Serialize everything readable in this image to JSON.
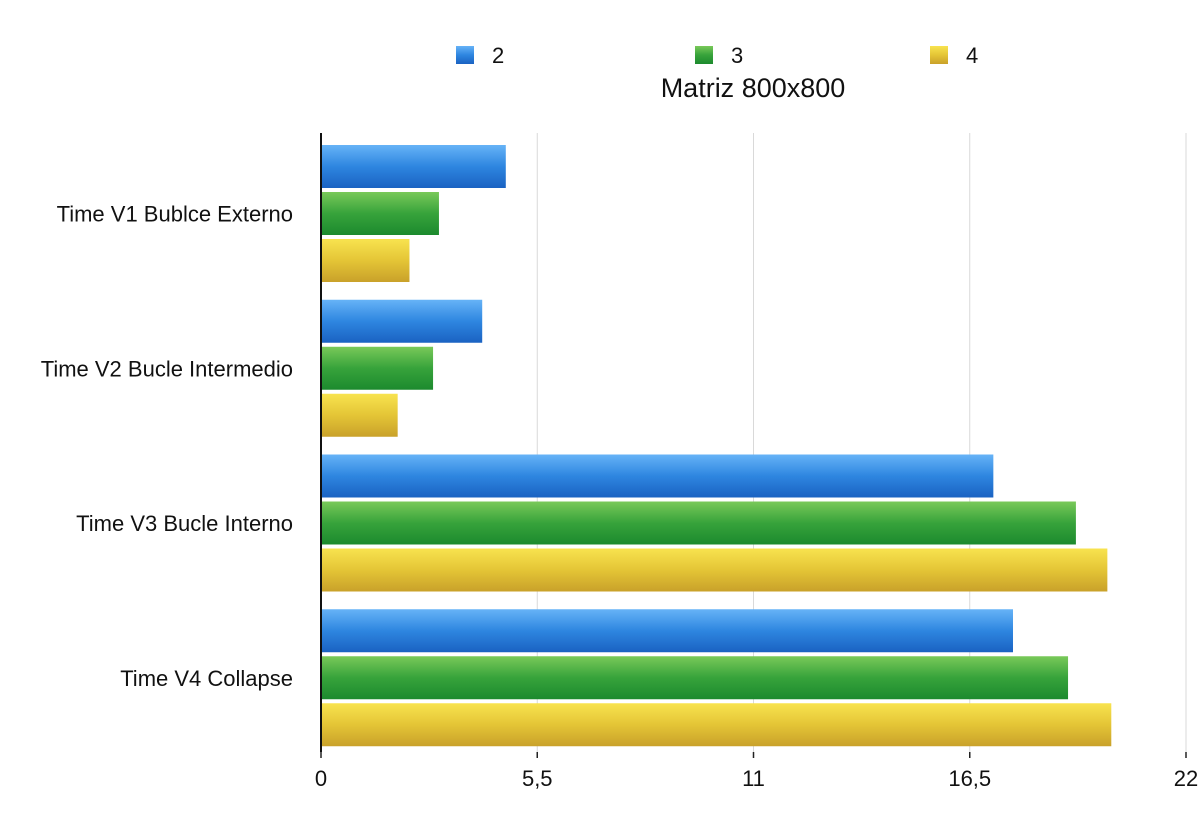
{
  "chart_data": {
    "type": "bar",
    "orientation": "horizontal",
    "title": "Matriz 800x800",
    "categories": [
      "Time V1 Bublce Externo",
      "Time V2 Bucle Intermedio",
      "Time V3 Bucle Interno",
      "Time V4 Collapse"
    ],
    "series": [
      {
        "name": "2",
        "color": "#2f7fdc",
        "values": [
          4.7,
          4.1,
          17.1,
          17.6
        ]
      },
      {
        "name": "3",
        "color": "#3aa13d",
        "values": [
          3.0,
          2.85,
          19.2,
          19.0
        ]
      },
      {
        "name": "4",
        "color": "#e2c22f",
        "values": [
          2.25,
          1.95,
          20.0,
          20.1
        ]
      }
    ],
    "xlim": [
      0,
      22
    ],
    "xticks": [
      "0",
      "5,5",
      "11",
      "16,5",
      "22"
    ],
    "tick_values": [
      0,
      5.5,
      11,
      16.5,
      22
    ],
    "grid": true,
    "legend_position": "top"
  }
}
